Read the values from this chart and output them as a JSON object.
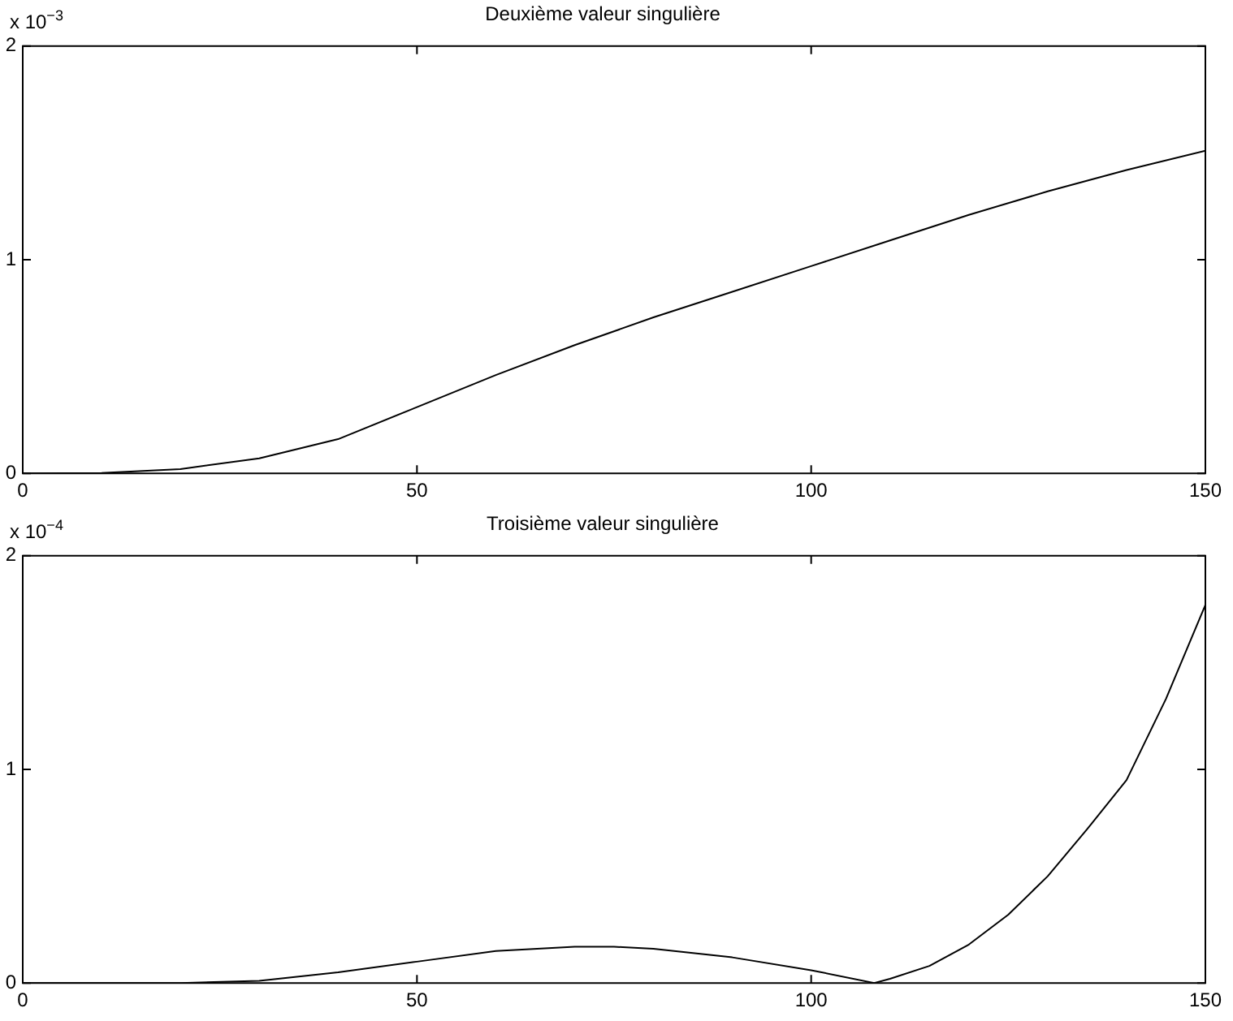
{
  "chart_data": [
    {
      "type": "line",
      "title": "Deuxième valeur singulière",
      "annotations": [
        "x 10$^{−3}$"
      ],
      "color": "#000000",
      "marker": "none",
      "grid": false,
      "xlim": [
        0,
        150
      ],
      "xticks": [
        0,
        50,
        100,
        150
      ],
      "ylim": [
        0,
        2
      ],
      "yticks": [
        0,
        1,
        2
      ],
      "x": [
        0,
        10,
        20,
        30,
        40,
        50,
        60,
        70,
        80,
        90,
        100,
        110,
        120,
        130,
        140,
        150
      ],
      "values": [
        0,
        0.002,
        0.02,
        0.07,
        0.16,
        0.31,
        0.46,
        0.6,
        0.73,
        0.85,
        0.97,
        1.09,
        1.21,
        1.32,
        1.42,
        1.51
      ]
    },
    {
      "type": "line",
      "title": "Troisième valeur singulière",
      "annotations": [
        "x 10$^{−4}$"
      ],
      "color": "#000000",
      "marker": "none",
      "grid": false,
      "xlim": [
        0,
        150
      ],
      "xticks": [
        0,
        50,
        100,
        150
      ],
      "ylim": [
        0,
        2
      ],
      "yticks": [
        0,
        1,
        2
      ],
      "x": [
        0,
        10,
        20,
        30,
        40,
        50,
        60,
        70,
        75,
        80,
        90,
        100,
        108,
        110,
        115,
        120,
        125,
        130,
        135,
        140,
        145,
        150
      ],
      "values": [
        0,
        0,
        0,
        0.01,
        0.05,
        0.1,
        0.15,
        0.17,
        0.17,
        0.16,
        0.12,
        0.06,
        0,
        0.02,
        0.08,
        0.18,
        0.32,
        0.5,
        0.72,
        0.95,
        1.33,
        1.77
      ]
    }
  ]
}
